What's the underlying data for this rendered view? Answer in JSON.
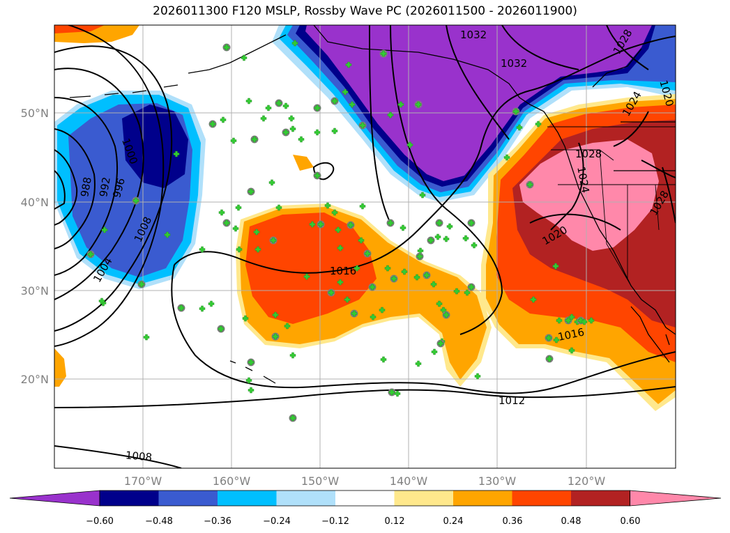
{
  "title": "2026011300 F120 MSLP, Rossby Wave PC (2026011500 - 2026011900)",
  "map": {
    "lon_ticks": [
      "170°W",
      "160°W",
      "150°W",
      "140°W",
      "130°W",
      "120°W"
    ],
    "lat_ticks": [
      "50°N",
      "40°N",
      "30°N",
      "20°N"
    ],
    "isobar_labels": [
      "1032",
      "1032",
      "1028",
      "1024",
      "1020",
      "1028",
      "1024",
      "1028",
      "1020",
      "1016",
      "1016",
      "1012",
      "1008",
      "1008",
      "1004",
      "1000",
      "996",
      "992",
      "988"
    ]
  },
  "colorbar": {
    "ticks": [
      "−0.60",
      "−0.48",
      "−0.36",
      "−0.24",
      "−0.12",
      "0.12",
      "0.24",
      "0.36",
      "0.48",
      "0.60"
    ],
    "colors": [
      "#9932cc",
      "#00008b",
      "#3a5bd0",
      "#00bfff",
      "#b0e0fa",
      "#ffffff",
      "#ffe88c",
      "#ffa500",
      "#ff4500",
      "#b22222",
      "#ff88aa"
    ]
  },
  "colors": {
    "grid": "#b0b0b0",
    "marker": "#32cd32",
    "marker_outline": "#808080"
  }
}
